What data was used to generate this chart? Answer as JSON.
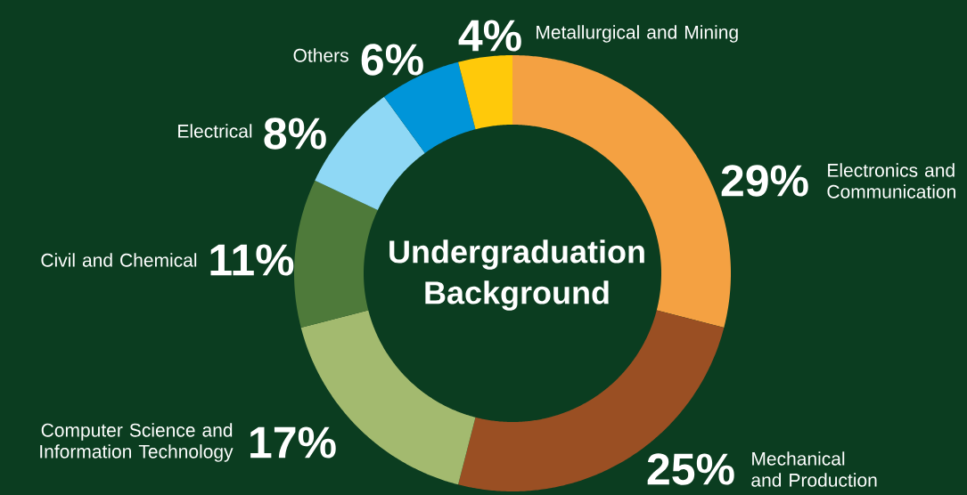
{
  "chart_data": {
    "type": "donut",
    "title": "Undergraduation Background",
    "categories": [
      "Electronics and Communication",
      "Mechanical and Production",
      "Computer Science and Information Technology",
      "Civil and Chemical",
      "Electrical",
      "Others",
      "Metallurgical and Mining"
    ],
    "values": [
      29,
      25,
      17,
      11,
      8,
      6,
      4
    ],
    "value_labels": [
      "29%",
      "25%",
      "17%",
      "11%",
      "8%",
      "6%",
      "4%"
    ],
    "colors": [
      "#f4a142",
      "#9a4f23",
      "#a3ba6f",
      "#4e7a3a",
      "#8fd8f5",
      "#0095d9",
      "#ffc90a"
    ]
  }
}
